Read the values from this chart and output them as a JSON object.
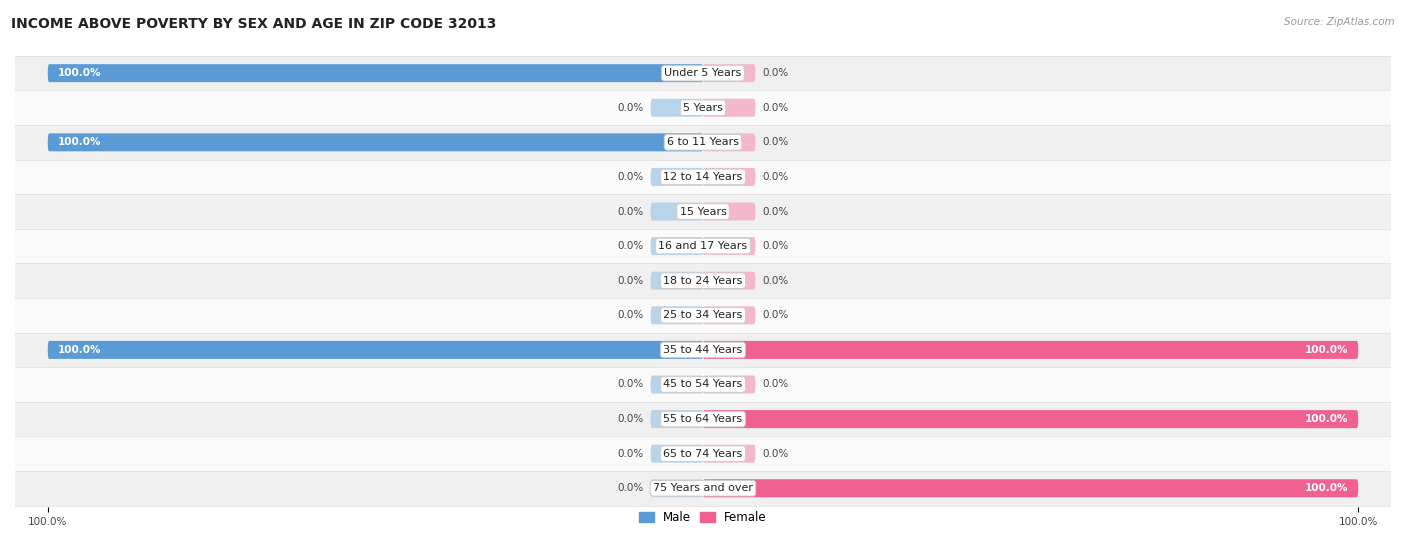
{
  "title": "INCOME ABOVE POVERTY BY SEX AND AGE IN ZIP CODE 32013",
  "source": "Source: ZipAtlas.com",
  "categories": [
    "Under 5 Years",
    "5 Years",
    "6 to 11 Years",
    "12 to 14 Years",
    "15 Years",
    "16 and 17 Years",
    "18 to 24 Years",
    "25 to 34 Years",
    "35 to 44 Years",
    "45 to 54 Years",
    "55 to 64 Years",
    "65 to 74 Years",
    "75 Years and over"
  ],
  "male_values": [
    100.0,
    0.0,
    100.0,
    0.0,
    0.0,
    0.0,
    0.0,
    0.0,
    100.0,
    0.0,
    0.0,
    0.0,
    0.0
  ],
  "female_values": [
    0.0,
    0.0,
    0.0,
    0.0,
    0.0,
    0.0,
    0.0,
    0.0,
    100.0,
    0.0,
    100.0,
    0.0,
    100.0
  ],
  "male_full_color": "#5B9BD5",
  "male_zero_color": "#B8D4EA",
  "female_full_color": "#F06090",
  "female_zero_color": "#F4B8CC",
  "row_bg_color": "#F0F0F0",
  "row_alt_color": "#FAFAFA",
  "bg_color": "#FFFFFF",
  "label_bg_color": "#FFFFFF",
  "label_edge_color": "#CCCCCC",
  "text_dark": "#444444",
  "text_white": "#FFFFFF",
  "bar_height": 0.52,
  "zero_bar_width": 8.0,
  "xlim": 105,
  "title_fontsize": 10,
  "label_fontsize": 8,
  "value_fontsize": 7.5,
  "legend_fontsize": 8.5
}
